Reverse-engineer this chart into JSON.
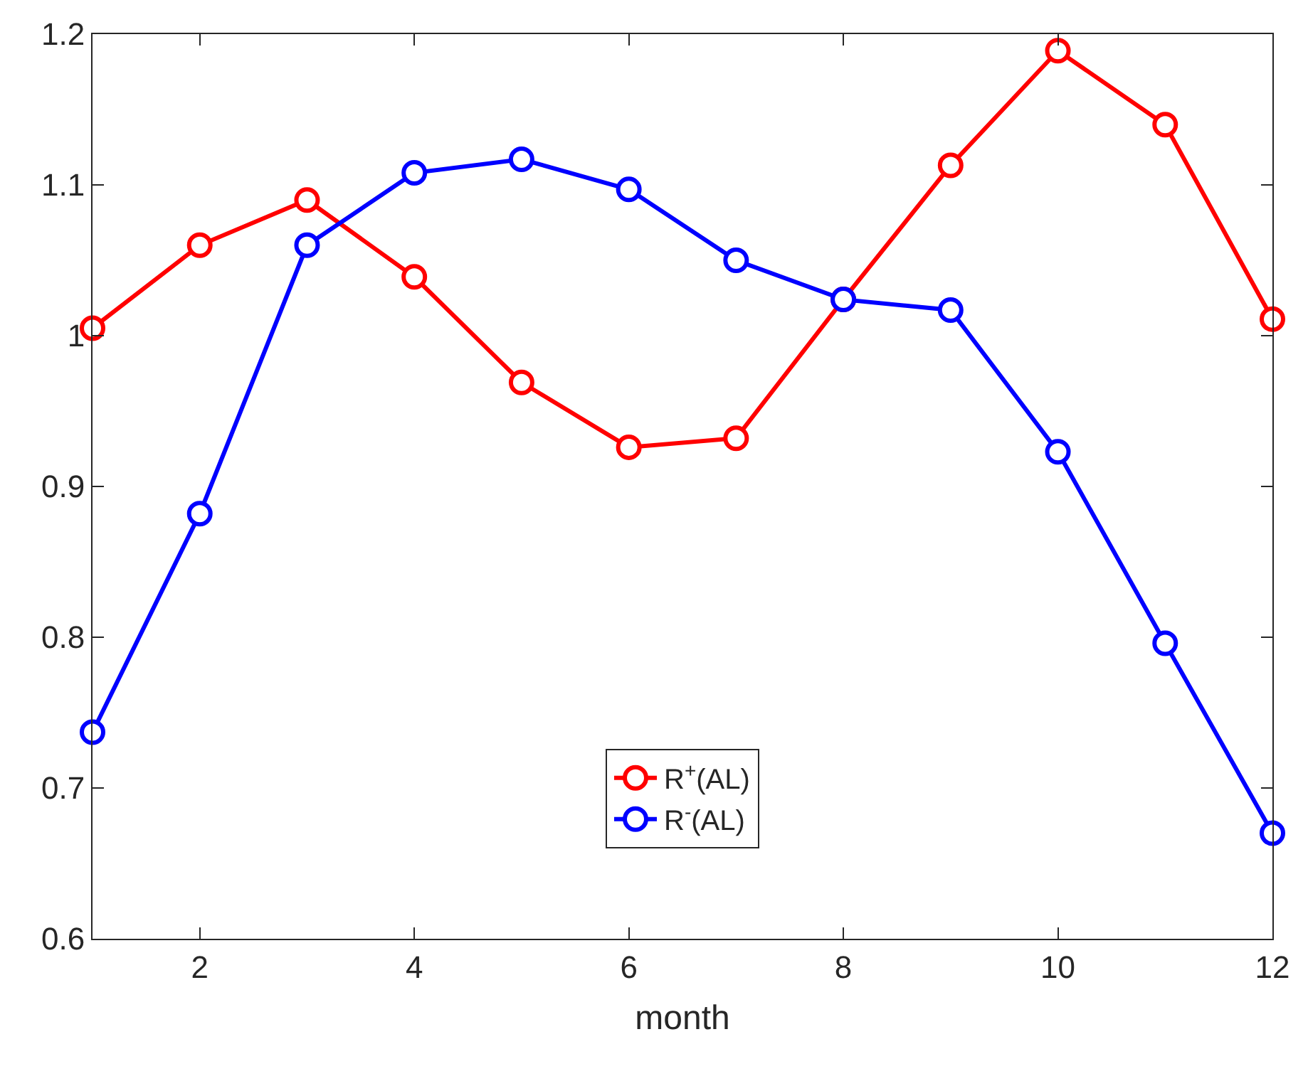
{
  "chart_data": {
    "type": "line",
    "xlabel": "month",
    "x": [
      1,
      2,
      3,
      4,
      5,
      6,
      7,
      8,
      9,
      10,
      11,
      12
    ],
    "series": [
      {
        "name": "R$^{+}$(AL)",
        "color": "#ff0000",
        "values": [
          1.005,
          1.06,
          1.09,
          1.039,
          0.969,
          0.926,
          0.932,
          1.024,
          1.113,
          1.189,
          1.14,
          1.011
        ]
      },
      {
        "name": "R$^{-}$(AL)",
        "color": "#0000ff",
        "values": [
          0.737,
          0.882,
          1.06,
          1.108,
          1.117,
          1.097,
          1.05,
          1.024,
          1.017,
          0.923,
          0.796,
          0.67
        ]
      }
    ],
    "xlim": [
      1,
      12
    ],
    "xticks": [
      2,
      4,
      6,
      8,
      10,
      12
    ],
    "ylim": [
      0.6,
      1.2
    ],
    "yticks": [
      0.6,
      0.7,
      0.8,
      0.9,
      1,
      1.1,
      1.2
    ],
    "legend": "bottom",
    "marker": "circle",
    "line_style": "solid"
  }
}
